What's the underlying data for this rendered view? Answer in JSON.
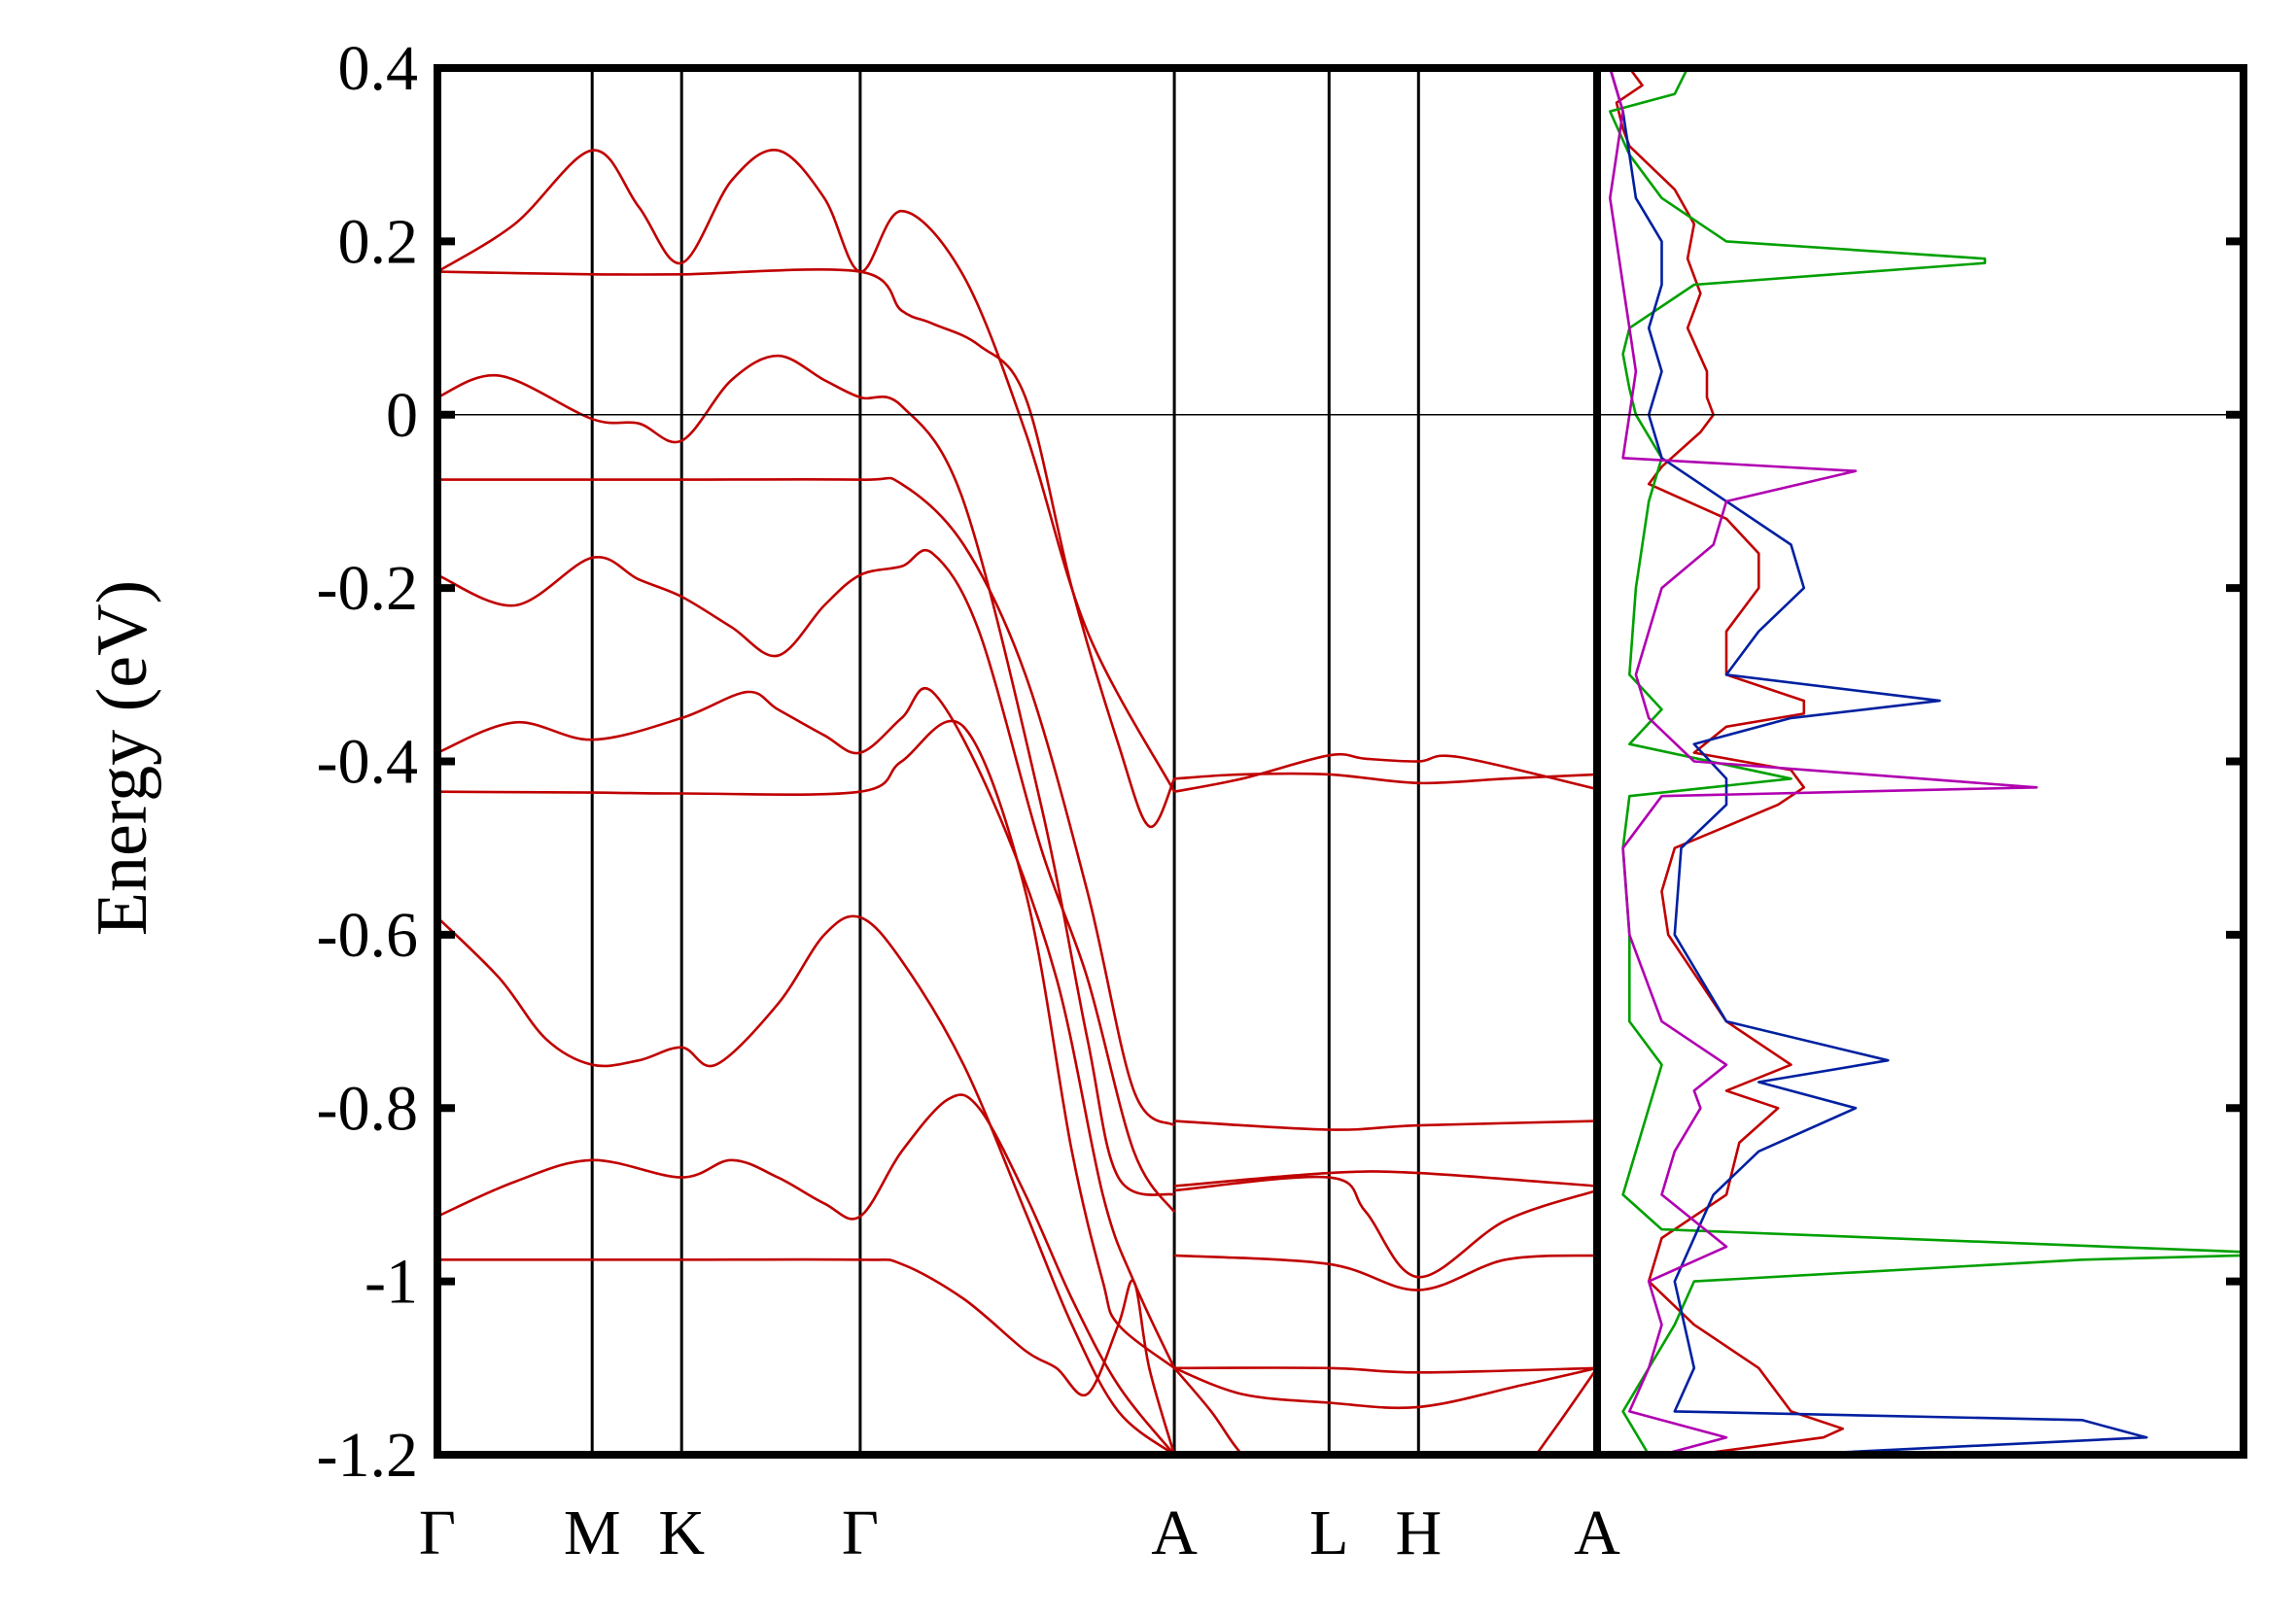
{
  "chart_data": [
    {
      "type": "line",
      "panel": "band-structure",
      "title": "",
      "xlabel": "",
      "ylabel": "Energy (eV)",
      "ylim": [
        -1.2,
        0.4
      ],
      "yticks": [
        "0.4",
        "0.2",
        "0",
        "-0.2",
        "-0.4",
        "-0.6",
        "-0.8",
        "-1",
        "-1.2"
      ],
      "ytick_values": [
        0.4,
        0.2,
        0,
        -0.2,
        -0.4,
        -0.6,
        -0.8,
        -1.0,
        -1.2
      ],
      "kpath": {
        "labels": [
          "Γ",
          "M",
          "K",
          "Γ",
          "A",
          "L",
          "H",
          "A"
        ],
        "positions": [
          0,
          0.5,
          0.789,
          1.366,
          2.381,
          2.881,
          3.17,
          3.747
        ]
      },
      "fermi_level": 0,
      "band_color": "#c00000",
      "series": [
        {
          "x": [
            0,
            0.25,
            0.5,
            0.65,
            0.789,
            0.95,
            1.1,
            1.25,
            1.366,
            1.5,
            1.7,
            1.9,
            2.1,
            2.381
          ],
          "values": [
            0.165,
            0.22,
            0.305,
            0.24,
            0.175,
            0.27,
            0.305,
            0.25,
            0.165,
            0.235,
            0.16,
            -0.02,
            -0.25,
            -0.435
          ]
        },
        {
          "x": [
            0,
            0.5,
            0.789,
            1.366,
            1.5,
            1.6,
            1.75,
            1.9,
            2.05,
            2.2,
            2.3,
            2.381
          ],
          "values": [
            0.165,
            0.162,
            0.162,
            0.165,
            0.12,
            0.105,
            0.08,
            0.02,
            -0.2,
            -0.38,
            -0.475,
            -0.42
          ]
        },
        {
          "x": [
            0,
            0.2,
            0.5,
            0.65,
            0.789,
            0.95,
            1.1,
            1.25,
            1.366,
            1.5,
            1.7,
            1.95,
            2.1,
            2.2,
            2.381
          ],
          "values": [
            0.02,
            0.045,
            -0.005,
            -0.01,
            -0.03,
            0.04,
            0.068,
            0.04,
            0.02,
            0.01,
            -0.1,
            -0.45,
            -0.72,
            -0.88,
            -0.9
          ]
        },
        {
          "x": [
            0,
            0.5,
            0.789,
            1.366,
            1.5,
            1.7,
            1.9,
            2.1,
            2.25,
            2.381
          ],
          "values": [
            -0.075,
            -0.075,
            -0.075,
            -0.075,
            -0.08,
            -0.15,
            -0.3,
            -0.55,
            -0.78,
            -0.82
          ]
        },
        {
          "x": [
            0,
            0.25,
            0.5,
            0.65,
            0.789,
            0.95,
            1.1,
            1.25,
            1.366,
            1.5,
            1.6,
            1.75,
            1.95,
            2.1,
            2.25,
            2.381
          ],
          "values": [
            -0.185,
            -0.22,
            -0.165,
            -0.19,
            -0.21,
            -0.245,
            -0.278,
            -0.22,
            -0.185,
            -0.175,
            -0.16,
            -0.25,
            -0.5,
            -0.65,
            -0.85,
            -0.92
          ]
        },
        {
          "x": [
            0,
            0.25,
            0.5,
            0.789,
            1.0,
            1.1,
            1.25,
            1.366,
            1.5,
            1.6,
            1.8,
            2.0,
            2.15,
            2.25,
            2.381
          ],
          "values": [
            -0.39,
            -0.355,
            -0.375,
            -0.35,
            -0.32,
            -0.34,
            -0.37,
            -0.39,
            -0.35,
            -0.32,
            -0.45,
            -0.65,
            -0.9,
            -1.0,
            -1.1
          ]
        },
        {
          "x": [
            0,
            0.5,
            0.789,
            1.366,
            1.5,
            1.7,
            1.9,
            2.05,
            2.15,
            2.2,
            2.381
          ],
          "values": [
            -0.435,
            -0.436,
            -0.437,
            -0.435,
            -0.4,
            -0.36,
            -0.55,
            -0.85,
            -1.0,
            -1.05,
            -1.1
          ]
        },
        {
          "x": [
            0,
            0.2,
            0.35,
            0.5,
            0.65,
            0.789,
            0.9,
            1.1,
            1.25,
            1.366,
            1.5,
            1.7,
            1.9,
            2.05,
            2.2,
            2.381
          ],
          "values": [
            -0.58,
            -0.65,
            -0.72,
            -0.75,
            -0.745,
            -0.73,
            -0.75,
            -0.68,
            -0.6,
            -0.58,
            -0.63,
            -0.75,
            -0.92,
            -1.05,
            -1.15,
            -1.2
          ]
        },
        {
          "x": [
            0,
            0.25,
            0.5,
            0.789,
            0.95,
            1.1,
            1.25,
            1.366,
            1.5,
            1.65,
            1.75,
            1.9,
            2.05,
            2.2,
            2.381
          ],
          "values": [
            -0.925,
            -0.885,
            -0.86,
            -0.88,
            -0.86,
            -0.88,
            -0.91,
            -0.925,
            -0.85,
            -0.79,
            -0.8,
            -0.9,
            -1.02,
            -1.12,
            -1.2
          ]
        },
        {
          "x": [
            0,
            0.5,
            0.789,
            1.366,
            1.5,
            1.7,
            1.9,
            2.0,
            2.1,
            2.2,
            2.25,
            2.3,
            2.381
          ],
          "values": [
            -0.975,
            -0.975,
            -0.975,
            -0.975,
            -0.98,
            -1.02,
            -1.08,
            -1.1,
            -1.13,
            -1.05,
            -1.0,
            -1.1,
            -1.2
          ]
        },
        {
          "x": [
            2.381,
            2.6,
            2.881,
            3.17,
            3.45,
            3.747
          ],
          "values": [
            -0.42,
            -0.415,
            -0.415,
            -0.425,
            -0.42,
            -0.415
          ]
        },
        {
          "x": [
            2.381,
            2.6,
            2.881,
            3.0,
            3.17,
            3.3,
            3.747
          ],
          "values": [
            -0.435,
            -0.42,
            -0.393,
            -0.397,
            -0.4,
            -0.395,
            -0.432
          ]
        },
        {
          "x": [
            2.381,
            2.881,
            3.17,
            3.747
          ],
          "values": [
            -0.815,
            -0.825,
            -0.82,
            -0.815
          ]
        },
        {
          "x": [
            2.381,
            2.881,
            3.17,
            3.747
          ],
          "values": [
            -0.89,
            -0.875,
            -0.875,
            -0.89
          ]
        },
        {
          "x": [
            2.381,
            2.881,
            3.0,
            3.17,
            3.45,
            3.747
          ],
          "values": [
            -0.895,
            -0.88,
            -0.92,
            -0.995,
            -0.93,
            -0.895
          ]
        },
        {
          "x": [
            2.381,
            2.881,
            3.17,
            3.45,
            3.747
          ],
          "values": [
            -0.97,
            -0.98,
            -1.01,
            -0.975,
            -0.97
          ]
        },
        {
          "x": [
            2.381,
            2.881,
            3.17,
            3.747
          ],
          "values": [
            -1.1,
            -1.1,
            -1.105,
            -1.1
          ]
        },
        {
          "x": [
            2.381,
            2.6,
            2.881,
            3.17,
            3.5,
            3.747
          ],
          "values": [
            -1.1,
            -1.13,
            -1.14,
            -1.145,
            -1.12,
            -1.1
          ]
        },
        {
          "x": [
            2.381,
            2.5,
            2.6,
            2.75
          ],
          "values": [
            -1.1,
            -1.15,
            -1.2,
            -1.25
          ]
        },
        {
          "x": [
            3.747,
            3.65,
            3.55
          ],
          "values": [
            -1.1,
            -1.15,
            -1.2
          ]
        }
      ]
    },
    {
      "type": "line",
      "panel": "density-of-states",
      "orientation": "horizontal",
      "title": "",
      "xlabel": "",
      "ylim": [
        -1.2,
        0.4
      ],
      "xlim": [
        0,
        1.0
      ],
      "fermi_level": 0,
      "series": [
        {
          "color": "#c00000",
          "y": [
            0.4,
            0.38,
            0.36,
            0.33,
            0.31,
            0.26,
            0.22,
            0.18,
            0.14,
            0.1,
            0.05,
            0.02,
            0.0,
            -0.02,
            -0.06,
            -0.08,
            -0.12,
            -0.16,
            -0.2,
            -0.25,
            -0.3,
            -0.33,
            -0.345,
            -0.36,
            -0.39,
            -0.41,
            -0.43,
            -0.45,
            -0.5,
            -0.55,
            -0.6,
            -0.7,
            -0.75,
            -0.78,
            -0.8,
            -0.84,
            -0.9,
            -0.95,
            -1.0,
            -1.05,
            -1.1,
            -1.15,
            -1.17,
            -1.18,
            -1.2
          ],
          "values": [
            0.05,
            0.07,
            0.03,
            0.04,
            0.05,
            0.12,
            0.15,
            0.14,
            0.16,
            0.14,
            0.17,
            0.17,
            0.18,
            0.16,
            0.1,
            0.08,
            0.2,
            0.25,
            0.25,
            0.2,
            0.2,
            0.32,
            0.32,
            0.2,
            0.15,
            0.3,
            0.32,
            0.28,
            0.12,
            0.1,
            0.11,
            0.2,
            0.3,
            0.2,
            0.28,
            0.22,
            0.2,
            0.1,
            0.08,
            0.15,
            0.25,
            0.3,
            0.38,
            0.35,
            0.15
          ]
        },
        {
          "color": "#00a000",
          "y": [
            0.4,
            0.37,
            0.35,
            0.3,
            0.25,
            0.2,
            0.18,
            0.175,
            0.15,
            0.1,
            0.07,
            0.03,
            0.0,
            -0.05,
            -0.1,
            -0.2,
            -0.3,
            -0.34,
            -0.38,
            -0.42,
            -0.44,
            -0.5,
            -0.6,
            -0.7,
            -0.75,
            -0.8,
            -0.85,
            -0.9,
            -0.94,
            -0.966,
            -0.97,
            -0.975,
            -1.0,
            -1.05,
            -1.1,
            -1.15,
            -1.2
          ],
          "values": [
            0.14,
            0.12,
            0.02,
            0.05,
            0.1,
            0.2,
            0.6,
            0.6,
            0.15,
            0.05,
            0.04,
            0.05,
            0.06,
            0.1,
            0.08,
            0.06,
            0.05,
            0.1,
            0.05,
            0.3,
            0.05,
            0.04,
            0.05,
            0.05,
            0.1,
            0.08,
            0.06,
            0.04,
            0.1,
            1.0,
            1.0,
            0.75,
            0.15,
            0.12,
            0.08,
            0.04,
            0.08
          ]
        },
        {
          "color": "#0020a0",
          "y": [
            0.4,
            0.35,
            0.3,
            0.25,
            0.2,
            0.15,
            0.1,
            0.05,
            0.0,
            -0.05,
            -0.1,
            -0.15,
            -0.2,
            -0.25,
            -0.3,
            -0.33,
            -0.35,
            -0.38,
            -0.42,
            -0.45,
            -0.5,
            -0.6,
            -0.7,
            -0.745,
            -0.77,
            -0.8,
            -0.85,
            -0.9,
            -1.0,
            -1.1,
            -1.15,
            -1.16,
            -1.18,
            -1.2
          ],
          "values": [
            0.02,
            0.04,
            0.05,
            0.06,
            0.1,
            0.1,
            0.08,
            0.1,
            0.08,
            0.1,
            0.2,
            0.3,
            0.32,
            0.25,
            0.2,
            0.53,
            0.3,
            0.15,
            0.2,
            0.2,
            0.13,
            0.12,
            0.2,
            0.45,
            0.25,
            0.4,
            0.25,
            0.18,
            0.12,
            0.15,
            0.12,
            0.75,
            0.85,
            0.3
          ]
        },
        {
          "color": "#b000b0",
          "y": [
            0.4,
            0.35,
            0.3,
            0.25,
            0.2,
            0.15,
            0.1,
            0.05,
            0.0,
            -0.05,
            -0.065,
            -0.1,
            -0.15,
            -0.2,
            -0.3,
            -0.35,
            -0.4,
            -0.43,
            -0.44,
            -0.5,
            -0.6,
            -0.7,
            -0.75,
            -0.78,
            -0.8,
            -0.85,
            -0.9,
            -0.96,
            -1.0,
            -1.05,
            -1.1,
            -1.15,
            -1.18,
            -1.2
          ],
          "values": [
            0.02,
            0.04,
            0.03,
            0.02,
            0.03,
            0.04,
            0.05,
            0.06,
            0.05,
            0.04,
            0.4,
            0.2,
            0.18,
            0.1,
            0.06,
            0.08,
            0.15,
            0.68,
            0.1,
            0.04,
            0.05,
            0.1,
            0.2,
            0.15,
            0.16,
            0.12,
            0.1,
            0.2,
            0.08,
            0.1,
            0.08,
            0.05,
            0.2,
            0.1
          ]
        }
      ]
    }
  ]
}
